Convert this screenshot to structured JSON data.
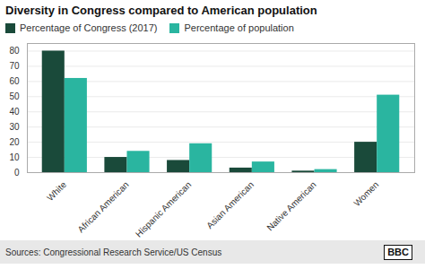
{
  "chart_data": {
    "type": "bar",
    "title": "Diversity in Congress compared to American population",
    "categories": [
      "White",
      "African American",
      "Hispanic American",
      "Asian American",
      "Native American",
      "Women"
    ],
    "series": [
      {
        "name": "Percentage of Congress (2017)",
        "color": "#1a4a3a",
        "values": [
          80,
          10,
          8,
          3,
          1,
          20
        ]
      },
      {
        "name": "Percentage of population",
        "color": "#2ab5a0",
        "values": [
          62,
          14,
          19,
          7,
          2,
          51
        ]
      }
    ],
    "ylim": [
      0,
      85
    ],
    "yticks": [
      0,
      10,
      20,
      30,
      40,
      50,
      60,
      70,
      80
    ],
    "grid": true,
    "legend": "top-left",
    "caption": "Sources: Congressional Research Service/US Census",
    "annotations": [
      "BBC"
    ]
  }
}
